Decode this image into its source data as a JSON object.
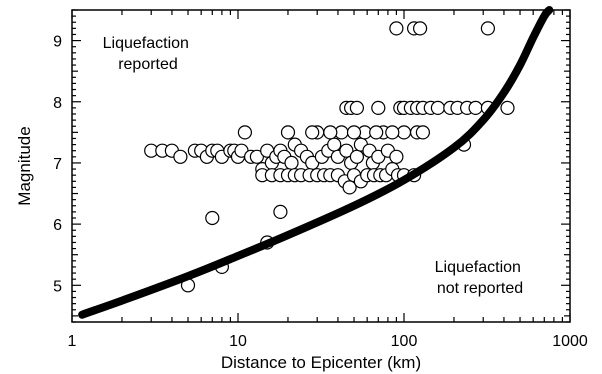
{
  "chart_data": {
    "type": "scatter",
    "title": "",
    "xlabel": "Distance to Epicenter (km)",
    "ylabel": "Magnitude",
    "x_scale": "log",
    "xlim": [
      1,
      1000
    ],
    "ylim": [
      4.4,
      9.5
    ],
    "grid": false,
    "x_ticks": [
      {
        "value": 1,
        "label": "1"
      },
      {
        "value": 10,
        "label": "10"
      },
      {
        "value": 100,
        "label": "100"
      },
      {
        "value": 1000,
        "label": "1000"
      }
    ],
    "y_ticks": [
      {
        "value": 5,
        "label": "5"
      },
      {
        "value": 6,
        "label": "6"
      },
      {
        "value": 7,
        "label": "7"
      },
      {
        "value": 8,
        "label": "8"
      },
      {
        "value": 9,
        "label": "9"
      }
    ],
    "annotations": [
      {
        "text": [
          "Liquefaction",
          "reported"
        ],
        "position": "top-left"
      },
      {
        "text": [
          "Liquefaction",
          "not reported"
        ],
        "position": "bottom-right"
      }
    ],
    "boundary_curve": {
      "x": [
        1.15,
        2,
        5,
        10,
        20,
        50,
        100,
        200,
        300,
        400,
        500,
        600,
        700,
        750
      ],
      "y": [
        4.52,
        4.75,
        5.15,
        5.48,
        5.82,
        6.3,
        6.72,
        7.25,
        7.7,
        8.15,
        8.6,
        9.05,
        9.4,
        9.5
      ]
    },
    "points": [
      {
        "x": 5,
        "y": 5.0
      },
      {
        "x": 8,
        "y": 5.3
      },
      {
        "x": 15,
        "y": 5.7
      },
      {
        "x": 7,
        "y": 6.1
      },
      {
        "x": 18,
        "y": 6.2
      },
      {
        "x": 3,
        "y": 7.2
      },
      {
        "x": 3.5,
        "y": 7.2
      },
      {
        "x": 4,
        "y": 7.2
      },
      {
        "x": 4.5,
        "y": 7.1
      },
      {
        "x": 5.5,
        "y": 7.2
      },
      {
        "x": 6,
        "y": 7.2
      },
      {
        "x": 6.5,
        "y": 7.1
      },
      {
        "x": 7,
        "y": 7.2
      },
      {
        "x": 7.5,
        "y": 7.2
      },
      {
        "x": 8,
        "y": 7.1
      },
      {
        "x": 9,
        "y": 7.2
      },
      {
        "x": 9.5,
        "y": 7.2
      },
      {
        "x": 10,
        "y": 7.1
      },
      {
        "x": 10.5,
        "y": 7.2
      },
      {
        "x": 11,
        "y": 7.5
      },
      {
        "x": 12,
        "y": 7.1
      },
      {
        "x": 13,
        "y": 7.1
      },
      {
        "x": 14,
        "y": 6.9
      },
      {
        "x": 15,
        "y": 7.2
      },
      {
        "x": 16,
        "y": 7.0
      },
      {
        "x": 17,
        "y": 7.1
      },
      {
        "x": 18,
        "y": 7.2
      },
      {
        "x": 19,
        "y": 7.1
      },
      {
        "x": 20,
        "y": 7.5
      },
      {
        "x": 21,
        "y": 7.0
      },
      {
        "x": 22,
        "y": 7.3
      },
      {
        "x": 24,
        "y": 7.2
      },
      {
        "x": 26,
        "y": 7.1
      },
      {
        "x": 28,
        "y": 7.0
      },
      {
        "x": 30,
        "y": 7.5
      },
      {
        "x": 32,
        "y": 7.1
      },
      {
        "x": 35,
        "y": 7.2
      },
      {
        "x": 38,
        "y": 7.3
      },
      {
        "x": 40,
        "y": 7.1
      },
      {
        "x": 42,
        "y": 7.5
      },
      {
        "x": 45,
        "y": 7.2
      },
      {
        "x": 48,
        "y": 7.0
      },
      {
        "x": 52,
        "y": 7.1
      },
      {
        "x": 55,
        "y": 7.3
      },
      {
        "x": 58,
        "y": 7.5
      },
      {
        "x": 62,
        "y": 7.2
      },
      {
        "x": 65,
        "y": 7.0
      },
      {
        "x": 70,
        "y": 7.1
      },
      {
        "x": 75,
        "y": 7.5
      },
      {
        "x": 80,
        "y": 7.2
      },
      {
        "x": 90,
        "y": 7.1
      },
      {
        "x": 100,
        "y": 7.5
      },
      {
        "x": 120,
        "y": 7.5
      },
      {
        "x": 130,
        "y": 7.5
      },
      {
        "x": 230,
        "y": 7.3
      },
      {
        "x": 14,
        "y": 6.8
      },
      {
        "x": 16,
        "y": 6.8
      },
      {
        "x": 18,
        "y": 6.8
      },
      {
        "x": 20,
        "y": 6.8
      },
      {
        "x": 22,
        "y": 6.8
      },
      {
        "x": 24,
        "y": 6.8
      },
      {
        "x": 27,
        "y": 6.8
      },
      {
        "x": 30,
        "y": 6.8
      },
      {
        "x": 33,
        "y": 6.8
      },
      {
        "x": 36,
        "y": 6.8
      },
      {
        "x": 40,
        "y": 6.8
      },
      {
        "x": 44,
        "y": 6.7
      },
      {
        "x": 47,
        "y": 6.6
      },
      {
        "x": 50,
        "y": 6.8
      },
      {
        "x": 55,
        "y": 6.7
      },
      {
        "x": 60,
        "y": 6.8
      },
      {
        "x": 66,
        "y": 6.8
      },
      {
        "x": 72,
        "y": 6.8
      },
      {
        "x": 78,
        "y": 6.8
      },
      {
        "x": 85,
        "y": 6.9
      },
      {
        "x": 92,
        "y": 6.8
      },
      {
        "x": 100,
        "y": 6.8
      },
      {
        "x": 115,
        "y": 6.8
      },
      {
        "x": 28,
        "y": 7.5
      },
      {
        "x": 36,
        "y": 7.5
      },
      {
        "x": 50,
        "y": 7.5
      },
      {
        "x": 68,
        "y": 7.5
      },
      {
        "x": 85,
        "y": 7.5
      },
      {
        "x": 45,
        "y": 7.9
      },
      {
        "x": 48,
        "y": 7.9
      },
      {
        "x": 52,
        "y": 7.9
      },
      {
        "x": 70,
        "y": 7.9
      },
      {
        "x": 95,
        "y": 7.9
      },
      {
        "x": 100,
        "y": 7.9
      },
      {
        "x": 110,
        "y": 7.9
      },
      {
        "x": 120,
        "y": 7.9
      },
      {
        "x": 130,
        "y": 7.9
      },
      {
        "x": 145,
        "y": 7.9
      },
      {
        "x": 160,
        "y": 7.9
      },
      {
        "x": 190,
        "y": 7.9
      },
      {
        "x": 210,
        "y": 7.9
      },
      {
        "x": 240,
        "y": 7.9
      },
      {
        "x": 270,
        "y": 7.9
      },
      {
        "x": 320,
        "y": 7.9
      },
      {
        "x": 420,
        "y": 7.9
      },
      {
        "x": 90,
        "y": 9.2
      },
      {
        "x": 115,
        "y": 9.2
      },
      {
        "x": 125,
        "y": 9.2
      },
      {
        "x": 320,
        "y": 9.2
      }
    ]
  }
}
